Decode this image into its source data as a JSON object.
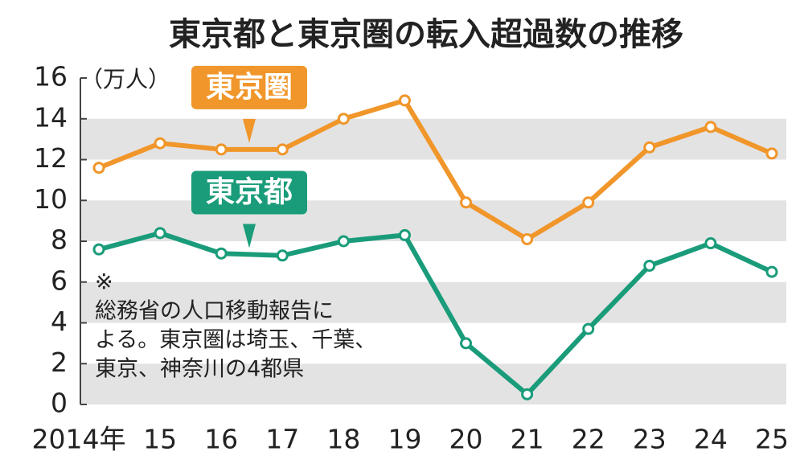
{
  "chart_data": {
    "type": "line",
    "title": "東京都と東京圏の転入超過数の推移",
    "y_unit": "（万人）",
    "categories": [
      "2014年",
      "15",
      "16",
      "17",
      "18",
      "19",
      "20",
      "21",
      "22",
      "23",
      "24",
      "25"
    ],
    "series": [
      {
        "name": "東京圏",
        "color": "#f0962a",
        "values": [
          11.6,
          12.8,
          12.5,
          12.5,
          14.0,
          14.9,
          9.9,
          8.1,
          9.9,
          12.6,
          13.6,
          12.3
        ]
      },
      {
        "name": "東京都",
        "color": "#1a9c7a",
        "values": [
          7.6,
          8.4,
          7.4,
          7.3,
          8.0,
          8.3,
          3.0,
          0.5,
          3.7,
          6.8,
          7.9,
          6.5
        ]
      }
    ],
    "ylim": [
      0,
      16
    ],
    "yticks": [
      0,
      2,
      4,
      6,
      8,
      10,
      12,
      14,
      16
    ],
    "grid_bands": true,
    "note": [
      "※",
      "総務省の人口移動報告に",
      "よる。東京圏は埼玉、千葉、",
      "東京、神奈川の4都県"
    ]
  }
}
